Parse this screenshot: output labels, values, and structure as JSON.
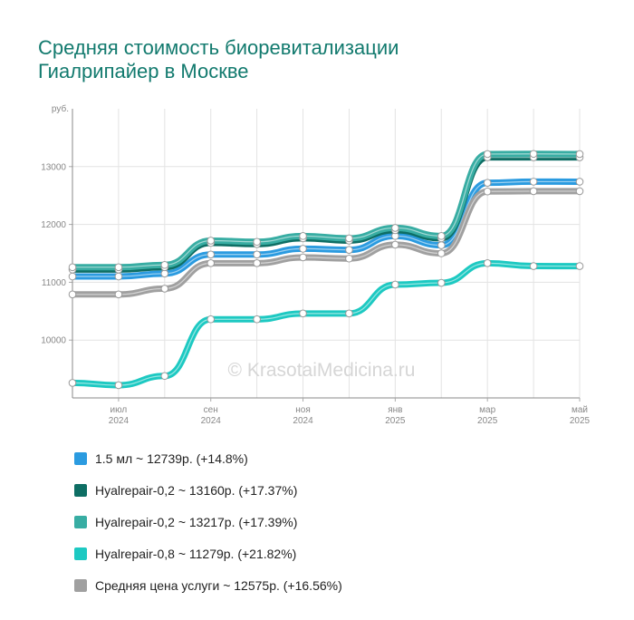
{
  "title": {
    "line1": "Средняя стоимость биоревитализации",
    "line2": "Гиалрипайер в Москве"
  },
  "watermark": "© KrasotaiMedicina.ru",
  "chart_data": {
    "type": "line",
    "ylabel": "руб.",
    "ylim": [
      9000,
      14000
    ],
    "y_ticks": [
      10000,
      11000,
      12000,
      13000
    ],
    "grid": true,
    "x_tick_labels": [
      {
        "index": 1,
        "month": "июл",
        "year": "2024"
      },
      {
        "index": 3,
        "month": "сен",
        "year": "2024"
      },
      {
        "index": 5,
        "month": "ноя",
        "year": "2024"
      },
      {
        "index": 7,
        "month": "янв",
        "year": "2025"
      },
      {
        "index": 9,
        "month": "мар",
        "year": "2025"
      },
      {
        "index": 11,
        "month": "май",
        "year": "2025"
      }
    ],
    "series": [
      {
        "name": "1.5 мл",
        "color": "#2b9be0",
        "legend": "1.5 мл ~ 12739р. (+14.8%)",
        "values": [
          11100,
          11100,
          11150,
          11480,
          11480,
          11580,
          11560,
          11800,
          11640,
          12720,
          12740,
          12739
        ]
      },
      {
        "name": "Hyalrepair-0,2",
        "color": "#0e6e64",
        "legend": "Hyalrepair-0,2 ~ 13160р. (+17.37%)",
        "values": [
          11220,
          11220,
          11260,
          11680,
          11660,
          11760,
          11720,
          11900,
          11760,
          13160,
          13160,
          13160
        ]
      },
      {
        "name": "Hyalrepair-0,2",
        "color": "#38ada3",
        "legend": "Hyalrepair-0,2 ~ 13217р. (+17.39%)",
        "values": [
          11260,
          11260,
          11300,
          11720,
          11700,
          11800,
          11760,
          11940,
          11800,
          13217,
          13220,
          13217
        ]
      },
      {
        "name": "Hyalrepair-0,8",
        "color": "#1dc9c2",
        "legend": "Hyalrepair-0,8 ~ 11279р. (+21.82%)",
        "values": [
          9260,
          9220,
          9380,
          10360,
          10360,
          10460,
          10460,
          10960,
          10990,
          11330,
          11280,
          11279
        ]
      },
      {
        "name": "Средняя цена услуги",
        "color": "#a0a0a0",
        "legend": "Средняя цена услуги ~ 12575р. (+16.56%)",
        "values": [
          10790,
          10790,
          10890,
          11330,
          11330,
          11430,
          11410,
          11650,
          11500,
          12570,
          12575,
          12575
        ]
      }
    ]
  }
}
